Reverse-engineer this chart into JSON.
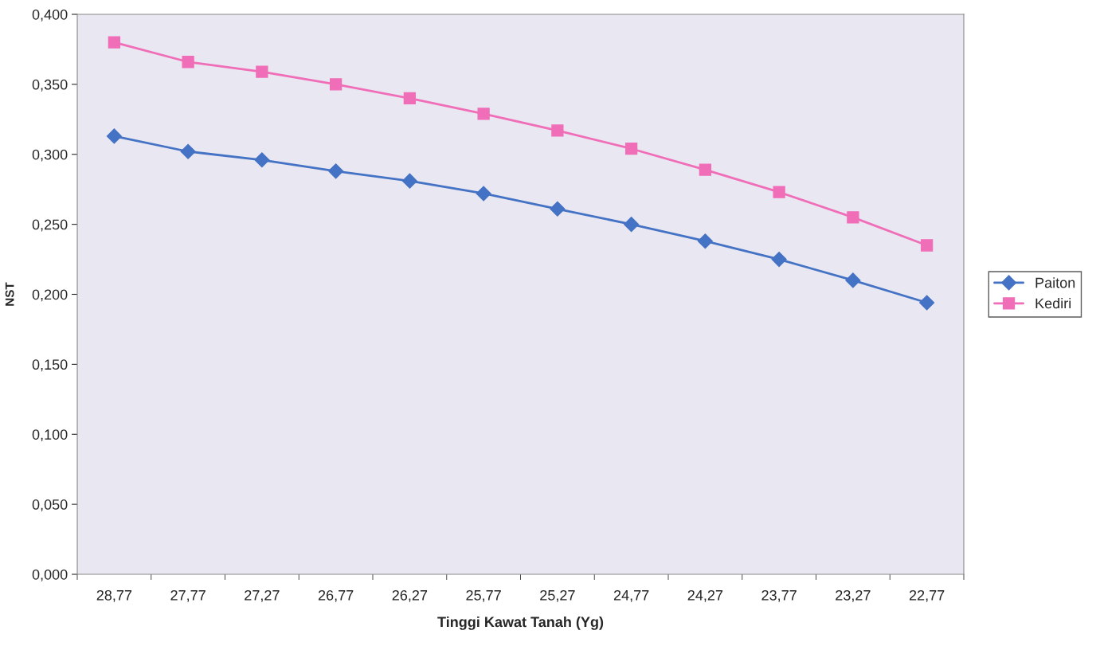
{
  "chart_data": {
    "type": "line",
    "xlabel": "Tinggi Kawat Tanah (Yg)",
    "ylabel": "NST",
    "categories": [
      "28,77",
      "27,77",
      "27,27",
      "26,77",
      "26,27",
      "25,77",
      "25,27",
      "24,77",
      "24,27",
      "23,77",
      "23,27",
      "22,77"
    ],
    "series": [
      {
        "name": "Paiton",
        "color": "#4472c4",
        "marker": "diamond",
        "values": [
          0.313,
          0.302,
          0.296,
          0.288,
          0.281,
          0.272,
          0.261,
          0.25,
          0.238,
          0.225,
          0.21,
          0.194
        ]
      },
      {
        "name": "Kediri",
        "color": "#f06eb8",
        "marker": "square",
        "values": [
          0.38,
          0.366,
          0.359,
          0.35,
          0.34,
          0.329,
          0.317,
          0.304,
          0.289,
          0.273,
          0.255,
          0.235
        ]
      }
    ],
    "ylim": [
      0,
      0.4
    ],
    "yticks": [
      {
        "value": 0,
        "label": "0,000"
      },
      {
        "value": 0.05,
        "label": "0,050"
      },
      {
        "value": 0.1,
        "label": "0,100"
      },
      {
        "value": 0.15,
        "label": "0,150"
      },
      {
        "value": 0.2,
        "label": "0,200"
      },
      {
        "value": 0.25,
        "label": "0,250"
      },
      {
        "value": 0.3,
        "label": "0,300"
      },
      {
        "value": 0.35,
        "label": "0,350"
      },
      {
        "value": 0.4,
        "label": "0,400"
      }
    ],
    "grid": false,
    "legend": "right",
    "line_style": "solid"
  }
}
